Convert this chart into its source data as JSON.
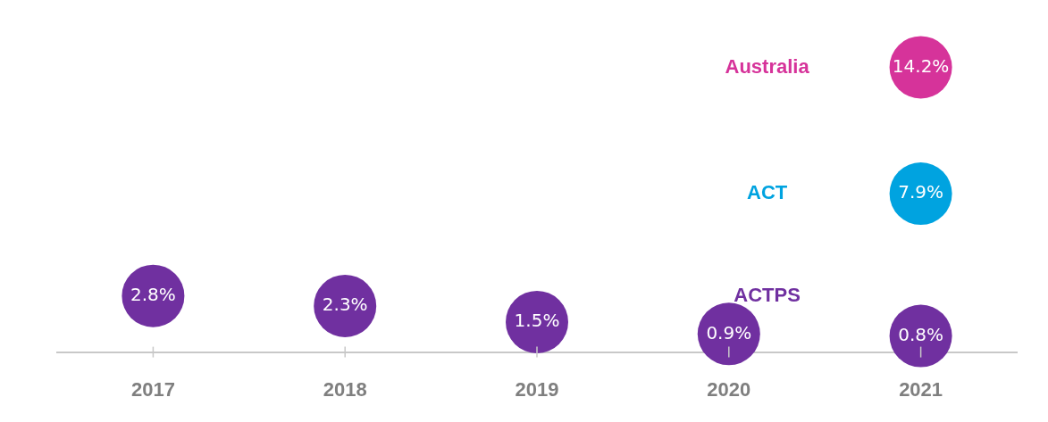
{
  "chart_data": {
    "type": "scatter",
    "categories": [
      "2017",
      "2018",
      "2019",
      "2020",
      "2021"
    ],
    "series": [
      {
        "name": "ACTPS",
        "color": "#7030a0",
        "values": [
          2.8,
          2.3,
          1.5,
          0.9,
          0.8
        ],
        "value_labels": [
          "2.8%",
          "2.3%",
          "1.5%",
          "0.9%",
          "0.8%"
        ]
      },
      {
        "name": "Australia",
        "color": "#d6339a",
        "values": [
          null,
          null,
          null,
          null,
          14.2
        ],
        "value_labels": [
          null,
          null,
          null,
          null,
          "14.2%"
        ]
      },
      {
        "name": "ACT",
        "color": "#00a3e0",
        "values": [
          null,
          null,
          null,
          null,
          7.9
        ],
        "value_labels": [
          null,
          null,
          null,
          null,
          "7.9%"
        ]
      }
    ],
    "tick_labels": "x",
    "marker": "circle",
    "grid": false,
    "legend": false
  }
}
